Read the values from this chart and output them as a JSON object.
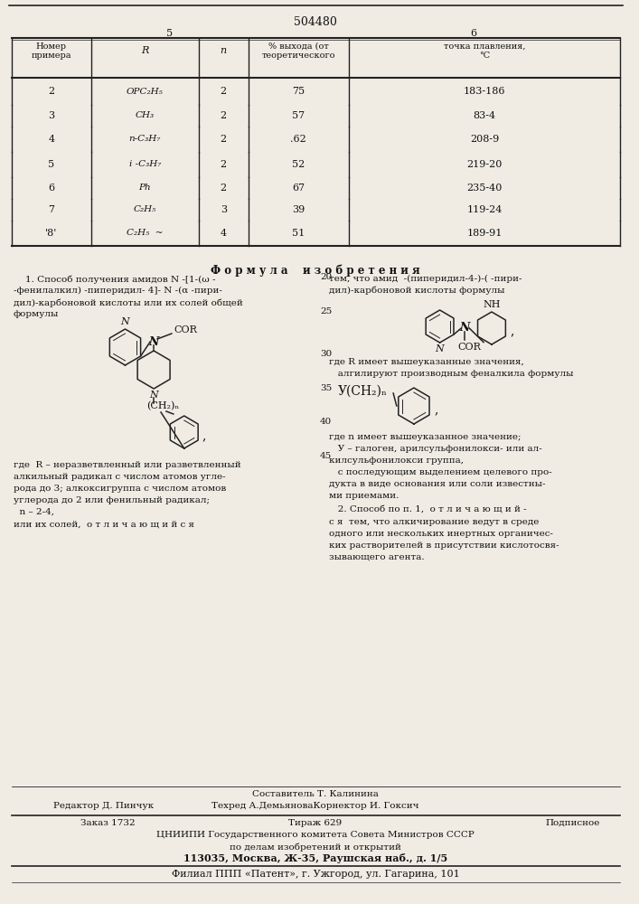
{
  "page_number": "504480",
  "col_left_num": "5",
  "col_right_num": "6",
  "table_headers": [
    "Номер\nпримера",
    "R",
    "n",
    "% выхода (от\nтеоретического",
    "точка плавления,\n°C"
  ],
  "table_rows": [
    [
      "2",
      "OPC₂H₅",
      "2",
      "75",
      "183-186"
    ],
    [
      "3",
      "CH₃",
      "2",
      "57",
      "83-4"
    ],
    [
      "4",
      "n-C₃H₇",
      "2",
      ".62",
      "208-9"
    ],
    [
      "5",
      "i -C₃H₇",
      "2",
      "52",
      "219-20"
    ],
    [
      "6",
      "Ph",
      "2",
      "67",
      "235-40"
    ],
    [
      "7",
      "C₂H₅",
      "3",
      "39",
      "119-24"
    ],
    [
      "'8'",
      "C₂H₅  ~",
      "4",
      "51",
      "189-91"
    ]
  ],
  "formula_title": "Ф о р м у л а    и з о б р е т е н и я",
  "claim1_lines": [
    "    1. Способ получения амидов N -[1-(ω -",
    "-фенилалкил) -пиперидил- 4]- N -(α -пири-",
    "дил)-карбоновой кислоты или их солей общей",
    "формулы"
  ],
  "desc_lines": [
    "где  R – неразветвленный или разветвленный",
    "алкильный радикал с числом атомов угле-",
    "рода до 3; алкоксигруппа с числом атомов",
    "углерода до 2 или фенильный радикал;",
    "  n – 2-4,",
    "или их солей,  о т л и ч а ю щ и й с я"
  ],
  "right1_lines": [
    "тем, что амид  -(пиперидил-4-)-( -пири-",
    "дил)-карбоновой кислоты формулы"
  ],
  "right2_lines": [
    "где R имеет вышеуказанные значения,",
    "   алгилируют производным феналкила формулы"
  ],
  "right3_lines": [
    "где n имеет вышеуказанное значение;",
    "   У – галоген, арилсульфонилокси- или ал-",
    "килсульфонилокси группа,",
    "   с последующим выделением целевого про-",
    "дукта в виде основания или соли известны-",
    "ми приемами."
  ],
  "right4_lines": [
    "   2. Способ по п. 1,  о т л и ч а ю щ и й -",
    "с я  тем, что алкичирование ведут в среде",
    "одного или нескольких инертных органичес-",
    "ких растворителей в присутствии кислотосвя-",
    "зывающего агента."
  ],
  "footer_составитель": "Составитель Т. Калинина",
  "footer_редактор": "Редактор Д. Пинчук",
  "footer_техред": "Техред А.ДемьяноваКорнектор И. Гоксич",
  "footer_заказ": "Заказ 1732",
  "footer_тираж": "Тираж 629",
  "footer_подписное": "Подписное",
  "footer_цниипи": "ЦНИИПИ Государственного комитета Совета Министров СССР",
  "footer_делам": "по делам изобретений и открытий",
  "footer_адрес": "113035, Москва, Ж-35, Раушская наб., д. 1/5",
  "footer_филиал": "Филиал ППП «Патент», г. Ужгород, ул. Гагарина, 101",
  "bg_color": "#f0ece4",
  "text_color": "#111111",
  "line_color": "#222222"
}
